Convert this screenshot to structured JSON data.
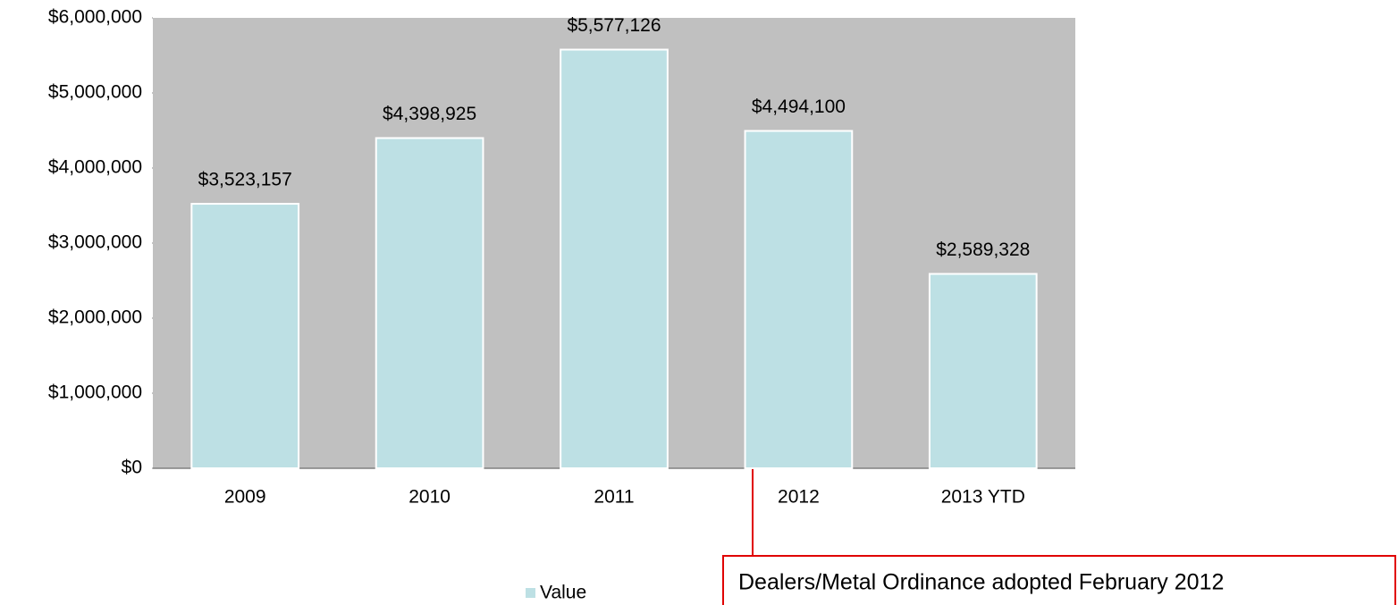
{
  "chart_data": {
    "type": "bar",
    "categories": [
      "2009",
      "2010",
      "2011",
      "2012",
      "2013 YTD"
    ],
    "series": [
      {
        "name": "Value",
        "color": "#bde0e4",
        "values": [
          3523157,
          4398925,
          5577126,
          4494100,
          2589328
        ],
        "value_labels": [
          "$3,523,157",
          "$4,398,925",
          "$5,577,126",
          "$4,494,100",
          "$2,589,328"
        ]
      }
    ],
    "ylim": [
      0,
      6000000
    ],
    "yticks": [
      {
        "value": 0,
        "label": "$0"
      },
      {
        "value": 1000000,
        "label": "$1,000,000"
      },
      {
        "value": 2000000,
        "label": "$2,000,000"
      },
      {
        "value": 3000000,
        "label": "$3,000,000"
      },
      {
        "value": 4000000,
        "label": "$4,000,000"
      },
      {
        "value": 5000000,
        "label": "$5,000,000"
      },
      {
        "value": 6000000,
        "label": "$6,000,000"
      }
    ],
    "grid": false,
    "legend": "bottom",
    "annotation": "Dealers/Metal Ordinance adopted February 2012"
  }
}
